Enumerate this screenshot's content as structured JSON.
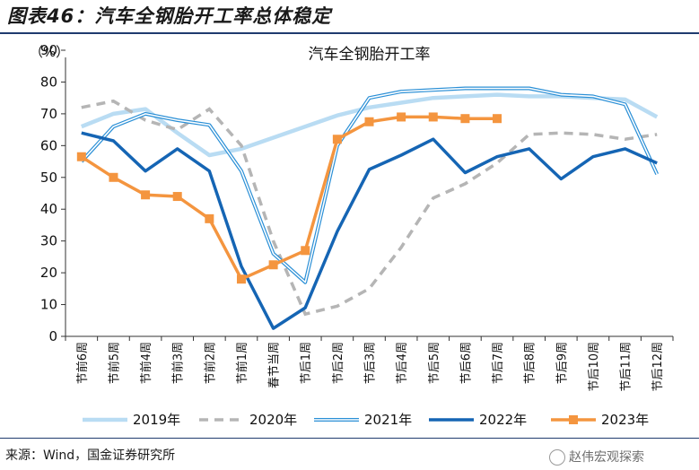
{
  "figure_title": "图表46：汽车全钢胎开工率总体稳定",
  "source_text": "来源：Wind，国金证券研究所",
  "watermark_text": "赵伟宏观探索",
  "chart_data": {
    "type": "line",
    "title": "汽车全钢胎开工率",
    "ylabel": "（%）",
    "xlabel": "",
    "ylim": [
      0,
      90
    ],
    "yticks": [
      0,
      10,
      20,
      30,
      40,
      50,
      60,
      70,
      80,
      90
    ],
    "grid": false,
    "legend_position": "bottom",
    "categories": [
      "节前6周",
      "节前5周",
      "节前4周",
      "节前3周",
      "节前2周",
      "节前1周",
      "春节当周",
      "节后1周",
      "节后2周",
      "节后3周",
      "节后4周",
      "节后5周",
      "节后6周",
      "节后7周",
      "节后8周",
      "节后9周",
      "节后10周",
      "节后11周",
      "节后12周"
    ],
    "series": [
      {
        "name": "2019年",
        "color": "#b9dcf3",
        "style": "thick",
        "values": [
          66,
          70,
          71.5,
          64,
          57,
          59,
          62.5,
          66,
          69.5,
          72,
          73.5,
          75,
          75.5,
          76,
          75.5,
          75.5,
          75,
          74.5,
          69
        ]
      },
      {
        "name": "2020年",
        "color": "#b5b5b5",
        "style": "dashed",
        "values": [
          72,
          74,
          68,
          65,
          71.5,
          60,
          30,
          7,
          9.5,
          15,
          28,
          43.5,
          48,
          54.5,
          63.5,
          64,
          63.5,
          62,
          63.5
        ]
      },
      {
        "name": "2021年",
        "color": "#2a8fd6",
        "style": "double",
        "values": [
          55,
          66,
          70,
          68,
          66.5,
          52,
          26,
          17,
          60,
          75,
          77,
          77.5,
          78,
          78,
          78,
          76,
          75.5,
          73,
          51
        ]
      },
      {
        "name": "2022年",
        "color": "#1565b4",
        "style": "solid",
        "values": [
          64,
          61.5,
          52,
          59,
          52,
          22,
          2.5,
          9,
          33,
          52.5,
          57,
          62,
          51.5,
          56.5,
          59,
          49.5,
          56.5,
          59,
          54.5
        ]
      },
      {
        "name": "2023年",
        "color": "#f4953f",
        "style": "marker",
        "values": [
          56.5,
          50,
          44.5,
          44,
          37,
          18,
          22.5,
          27,
          62,
          67.5,
          69,
          69,
          68.5,
          68.5,
          null,
          null,
          null,
          null,
          null
        ]
      }
    ]
  }
}
